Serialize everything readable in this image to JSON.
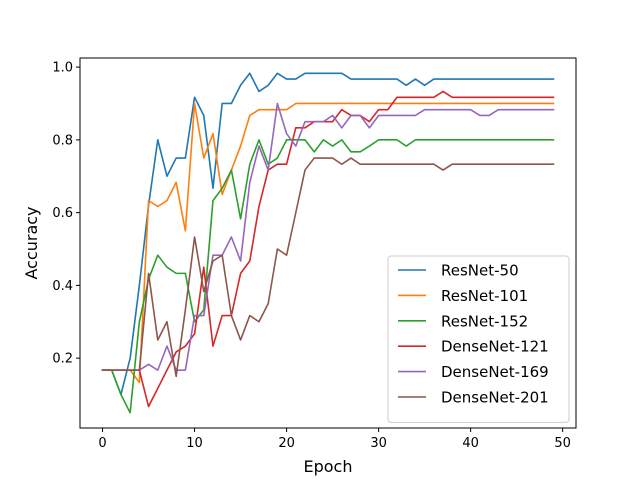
{
  "chart_data": {
    "type": "line",
    "title": "",
    "xlabel": "Epoch",
    "ylabel": "Accuracy",
    "xlim": [
      -2.45,
      51.45
    ],
    "ylim": [
      0.008,
      1.025
    ],
    "xticks": [
      0,
      10,
      20,
      30,
      40,
      50
    ],
    "yticks": [
      0.2,
      0.4,
      0.6,
      0.8,
      1.0
    ],
    "xtick_labels": [
      "0",
      "10",
      "20",
      "30",
      "40",
      "50"
    ],
    "ytick_labels": [
      "0.2",
      "0.4",
      "0.6",
      "0.8",
      "1.0"
    ],
    "grid": false,
    "legend_position": "lower-right",
    "x": [
      0,
      1,
      2,
      3,
      4,
      5,
      6,
      7,
      8,
      9,
      10,
      11,
      12,
      13,
      14,
      15,
      16,
      17,
      18,
      19,
      20,
      21,
      22,
      23,
      24,
      25,
      26,
      27,
      28,
      29,
      30,
      31,
      32,
      33,
      34,
      35,
      36,
      37,
      38,
      39,
      40,
      41,
      42,
      43,
      44,
      45,
      46,
      47,
      48,
      49
    ],
    "series": [
      {
        "name": "ResNet-50",
        "color": "#1f77b4",
        "values": [
          0.167,
          0.167,
          0.1,
          0.2,
          0.4,
          0.62,
          0.8,
          0.7,
          0.75,
          0.75,
          0.917,
          0.867,
          0.667,
          0.9,
          0.9,
          0.95,
          0.983,
          0.933,
          0.95,
          0.983,
          0.967,
          0.967,
          0.983,
          0.983,
          0.983,
          0.983,
          0.983,
          0.967,
          0.967,
          0.967,
          0.967,
          0.967,
          0.967,
          0.95,
          0.967,
          0.95,
          0.967,
          0.967,
          0.967,
          0.967,
          0.967,
          0.967,
          0.967,
          0.967,
          0.967,
          0.967,
          0.967,
          0.967,
          0.967,
          0.967
        ]
      },
      {
        "name": "ResNet-101",
        "color": "#ff7f0e",
        "values": [
          0.167,
          0.167,
          0.167,
          0.167,
          0.133,
          0.633,
          0.617,
          0.633,
          0.683,
          0.55,
          0.9,
          0.75,
          0.817,
          0.65,
          0.717,
          0.783,
          0.867,
          0.883,
          0.883,
          0.883,
          0.883,
          0.9,
          0.9,
          0.9,
          0.9,
          0.9,
          0.9,
          0.9,
          0.9,
          0.9,
          0.9,
          0.9,
          0.9,
          0.9,
          0.9,
          0.9,
          0.9,
          0.9,
          0.9,
          0.9,
          0.9,
          0.9,
          0.9,
          0.9,
          0.9,
          0.9,
          0.9,
          0.9,
          0.9,
          0.9
        ]
      },
      {
        "name": "ResNet-152",
        "color": "#2ca02c",
        "values": [
          0.167,
          0.167,
          0.1,
          0.05,
          0.3,
          0.417,
          0.483,
          0.45,
          0.433,
          0.433,
          0.3,
          0.333,
          0.633,
          0.667,
          0.717,
          0.583,
          0.733,
          0.8,
          0.733,
          0.75,
          0.8,
          0.8,
          0.8,
          0.767,
          0.8,
          0.783,
          0.8,
          0.767,
          0.767,
          0.783,
          0.8,
          0.8,
          0.8,
          0.783,
          0.8,
          0.8,
          0.8,
          0.8,
          0.8,
          0.8,
          0.8,
          0.8,
          0.8,
          0.8,
          0.8,
          0.8,
          0.8,
          0.8,
          0.8,
          0.8
        ]
      },
      {
        "name": "DenseNet-121",
        "color": "#d62728",
        "values": [
          0.167,
          0.167,
          0.167,
          0.167,
          0.167,
          0.067,
          0.117,
          0.167,
          0.217,
          0.233,
          0.267,
          0.45,
          0.233,
          0.317,
          0.317,
          0.433,
          0.467,
          0.617,
          0.717,
          0.733,
          0.733,
          0.833,
          0.833,
          0.85,
          0.85,
          0.85,
          0.883,
          0.867,
          0.867,
          0.85,
          0.883,
          0.883,
          0.917,
          0.917,
          0.917,
          0.917,
          0.917,
          0.933,
          0.917,
          0.917,
          0.917,
          0.917,
          0.917,
          0.917,
          0.917,
          0.917,
          0.917,
          0.917,
          0.917,
          0.917
        ]
      },
      {
        "name": "DenseNet-169",
        "color": "#9467bd",
        "values": [
          0.167,
          0.167,
          0.167,
          0.167,
          0.167,
          0.183,
          0.167,
          0.233,
          0.167,
          0.167,
          0.317,
          0.317,
          0.483,
          0.483,
          0.533,
          0.467,
          0.683,
          0.783,
          0.717,
          0.9,
          0.817,
          0.783,
          0.85,
          0.85,
          0.85,
          0.867,
          0.833,
          0.867,
          0.867,
          0.833,
          0.867,
          0.867,
          0.867,
          0.867,
          0.867,
          0.883,
          0.883,
          0.883,
          0.883,
          0.883,
          0.883,
          0.867,
          0.867,
          0.883,
          0.883,
          0.883,
          0.883,
          0.883,
          0.883,
          0.883
        ]
      },
      {
        "name": "DenseNet-201",
        "color": "#8c564b",
        "values": [
          0.167,
          0.167,
          0.167,
          0.167,
          0.167,
          0.433,
          0.25,
          0.3,
          0.15,
          0.333,
          0.533,
          0.383,
          0.467,
          0.483,
          0.317,
          0.25,
          0.317,
          0.3,
          0.35,
          0.5,
          0.483,
          0.6,
          0.717,
          0.75,
          0.75,
          0.75,
          0.733,
          0.75,
          0.733,
          0.733,
          0.733,
          0.733,
          0.733,
          0.733,
          0.733,
          0.733,
          0.733,
          0.717,
          0.733,
          0.733,
          0.733,
          0.733,
          0.733,
          0.733,
          0.733,
          0.733,
          0.733,
          0.733,
          0.733,
          0.733
        ]
      }
    ]
  }
}
